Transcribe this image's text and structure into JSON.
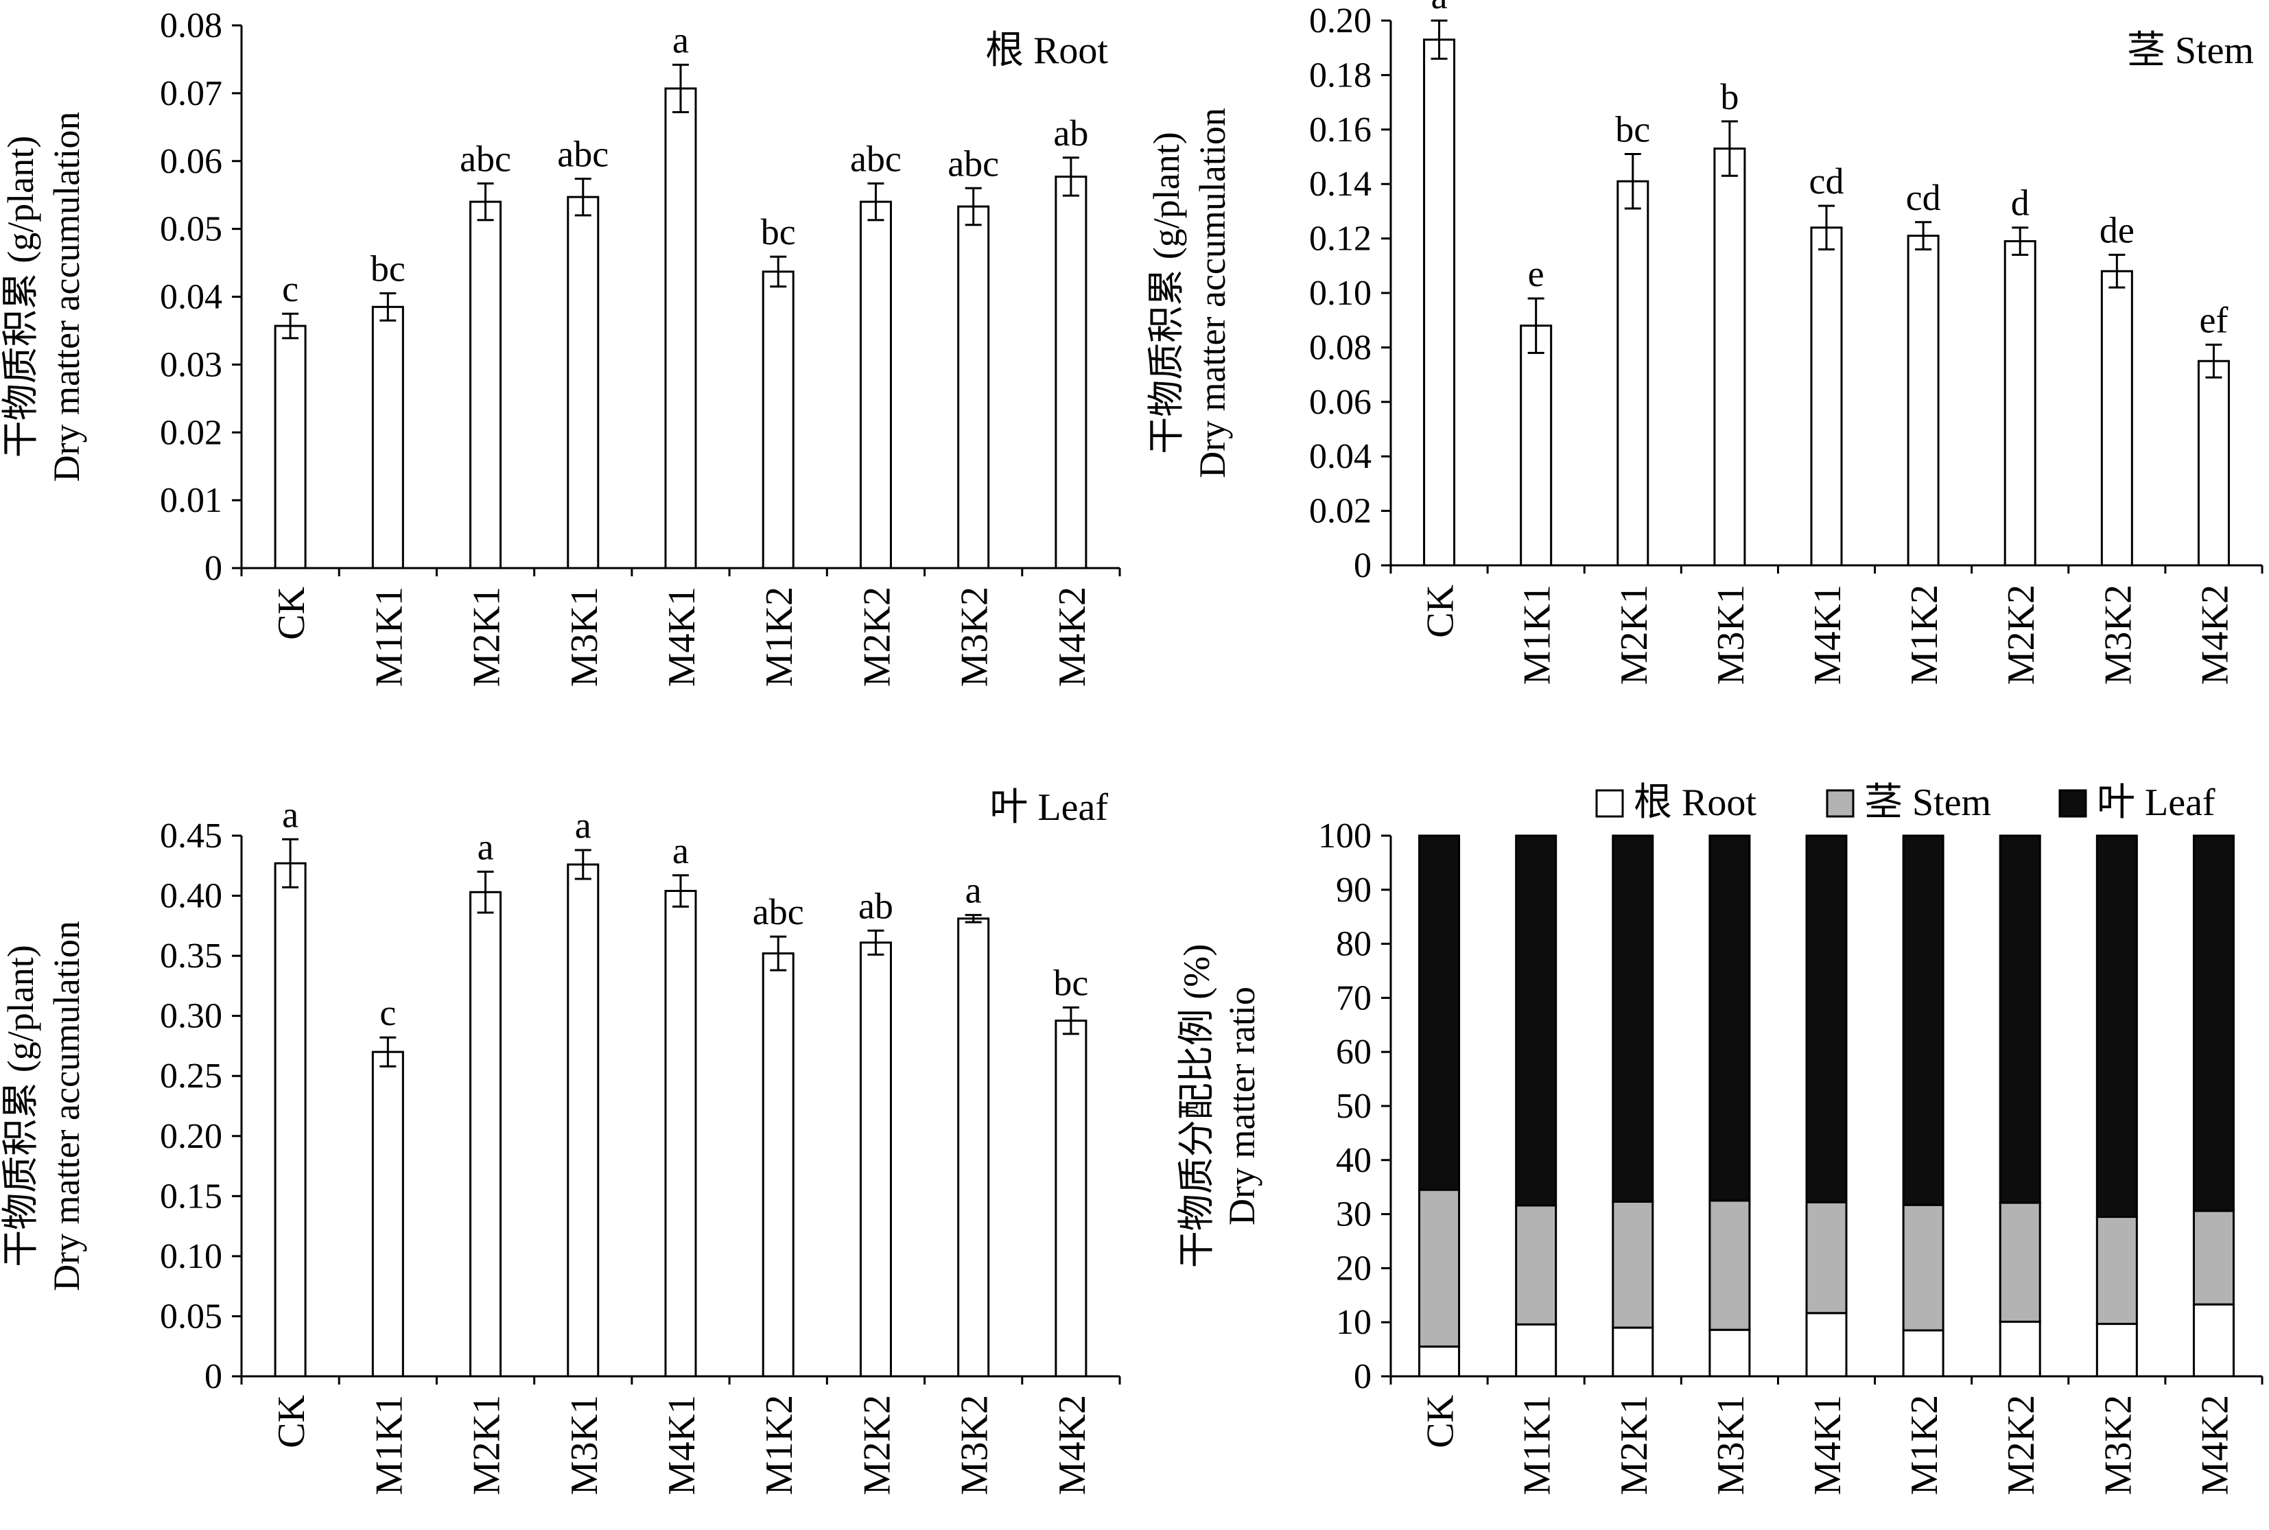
{
  "colors": {
    "root": "#ffffff",
    "stem": "#b3b3b3",
    "leaf": "#0d0d0d",
    "axis": "#000000"
  },
  "chart_data": [
    {
      "id": "root",
      "type": "bar",
      "title": "根 Root",
      "ylabel_cn": "干物质积累 (g/plant)",
      "ylabel_en": "Dry matter accumulation",
      "ylim": [
        0,
        0.08
      ],
      "yticks": [
        "0",
        "0.01",
        "0.02",
        "0.03",
        "0.04",
        "0.05",
        "0.06",
        "0.07",
        "0.08"
      ],
      "categories": [
        "CK",
        "M1K1",
        "M2K1",
        "M3K1",
        "M4K1",
        "M1K2",
        "M2K2",
        "M3K2",
        "M4K2"
      ],
      "values": [
        0.0357,
        0.0385,
        0.054,
        0.0547,
        0.0707,
        0.0437,
        0.054,
        0.0533,
        0.0577
      ],
      "errors": [
        0.0018,
        0.002,
        0.0027,
        0.0027,
        0.0035,
        0.0022,
        0.0027,
        0.0027,
        0.0028
      ],
      "letters": [
        "c",
        "bc",
        "abc",
        "abc",
        "a",
        "bc",
        "abc",
        "abc",
        "ab"
      ]
    },
    {
      "id": "stem",
      "type": "bar",
      "title": "茎 Stem",
      "ylabel_cn": "干物质积累 (g/plant)",
      "ylabel_en": "Dry matter accumulation",
      "ylim": [
        0,
        0.2
      ],
      "yticks": [
        "0",
        "0.02",
        "0.04",
        "0.06",
        "0.08",
        "0.10",
        "0.12",
        "0.14",
        "0.16",
        "0.18",
        "0.20"
      ],
      "categories": [
        "CK",
        "M1K1",
        "M2K1",
        "M3K1",
        "M4K1",
        "M1K2",
        "M2K2",
        "M3K2",
        "M4K2"
      ],
      "values": [
        0.193,
        0.088,
        0.141,
        0.153,
        0.124,
        0.121,
        0.119,
        0.108,
        0.075
      ],
      "errors": [
        0.007,
        0.01,
        0.01,
        0.01,
        0.008,
        0.005,
        0.005,
        0.006,
        0.006
      ],
      "letters": [
        "a",
        "e",
        "bc",
        "b",
        "cd",
        "cd",
        "d",
        "de",
        "ef"
      ]
    },
    {
      "id": "leaf",
      "type": "bar",
      "title": "叶 Leaf",
      "ylabel_cn": "干物质积累 (g/plant)",
      "ylabel_en": "Dry matter accumulation",
      "ylim": [
        0,
        0.45
      ],
      "yticks": [
        "0",
        "0.05",
        "0.10",
        "0.15",
        "0.20",
        "0.25",
        "0.30",
        "0.35",
        "0.40",
        "0.45"
      ],
      "categories": [
        "CK",
        "M1K1",
        "M2K1",
        "M3K1",
        "M4K1",
        "M1K2",
        "M2K2",
        "M3K2",
        "M4K2"
      ],
      "values": [
        0.427,
        0.27,
        0.403,
        0.426,
        0.404,
        0.352,
        0.361,
        0.381,
        0.296
      ],
      "errors": [
        0.02,
        0.012,
        0.017,
        0.012,
        0.013,
        0.014,
        0.01,
        0.003,
        0.011
      ],
      "letters": [
        "a",
        "c",
        "a",
        "a",
        "a",
        "abc",
        "ab",
        "a",
        "bc"
      ]
    },
    {
      "id": "ratio",
      "type": "stacked-bar",
      "ylabel_cn": "干物质分配比例 (%)",
      "ylabel_en": "Dry matter ratio",
      "ylim": [
        0,
        100
      ],
      "yticks": [
        "0",
        "10",
        "20",
        "30",
        "40",
        "50",
        "60",
        "70",
        "80",
        "90",
        "100"
      ],
      "categories": [
        "CK",
        "M1K1",
        "M2K1",
        "M3K1",
        "M4K1",
        "M1K2",
        "M2K2",
        "M3K2",
        "M4K2"
      ],
      "legend": [
        "根 Root",
        "茎 Stem",
        "叶 Leaf"
      ],
      "series": [
        {
          "name": "根 Root",
          "values": [
            5.5,
            9.6,
            9.0,
            8.6,
            11.7,
            8.5,
            10.1,
            9.7,
            13.3
          ]
        },
        {
          "name": "茎 Stem",
          "values": [
            29.0,
            22.0,
            23.3,
            23.9,
            20.5,
            23.2,
            22.0,
            19.8,
            17.3
          ]
        },
        {
          "name": "叶 Leaf",
          "values": [
            65.5,
            68.4,
            67.7,
            67.5,
            67.8,
            68.3,
            67.9,
            70.5,
            69.4
          ]
        }
      ]
    }
  ]
}
